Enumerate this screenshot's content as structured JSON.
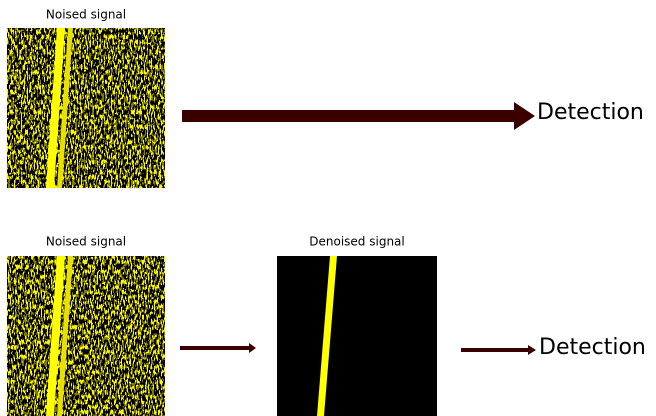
{
  "top": {
    "input_label": "Noised signal",
    "output_label": "Detection"
  },
  "bottom": {
    "input_label": "Noised signal",
    "denoised_label": "Denoised signal",
    "output_label": "Detection"
  }
}
